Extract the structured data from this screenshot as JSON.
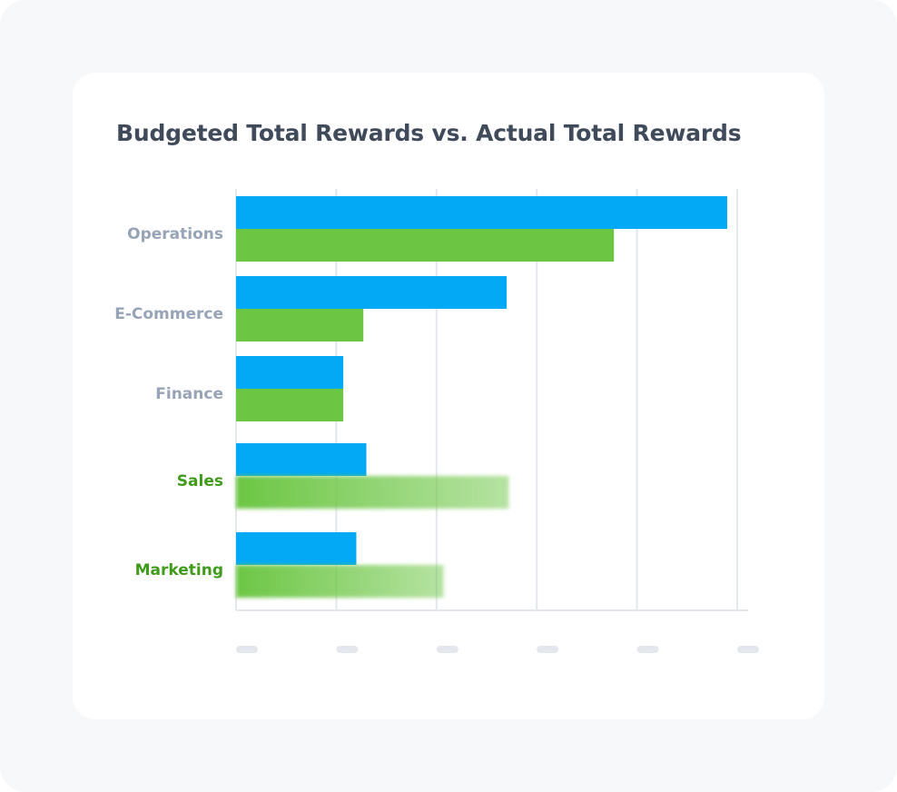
{
  "chart_data": {
    "type": "bar",
    "orientation": "horizontal",
    "title": "Budgeted Total Rewards vs. Actual Total Rewards",
    "categories": [
      "Operations",
      "E-Commerce",
      "Finance",
      "Sales",
      "Marketing"
    ],
    "series": [
      {
        "values": [
          4.9,
          2.7,
          1.07,
          1.3,
          1.2
        ],
        "color": "#03a9f4"
      },
      {
        "values": [
          3.77,
          1.27,
          1.07,
          2.72,
          2.07
        ],
        "color": "#6cc644"
      }
    ],
    "xlim": [
      0,
      5.1
    ],
    "x_ticks": [
      0,
      1,
      2,
      3,
      4,
      5
    ],
    "x_tick_labels_obscured": true,
    "grid": true,
    "legend": "none",
    "highlighted_categories": [
      "Sales",
      "Marketing"
    ],
    "blurred_series_index_for_highlighted": 1,
    "colors": {
      "label_default": "#97a3b6",
      "label_highlight": "#3f9b1a",
      "grid": "#e4e7ee",
      "tick_placeholder": "#e4e7ee",
      "title": "#3f4a5b"
    }
  }
}
